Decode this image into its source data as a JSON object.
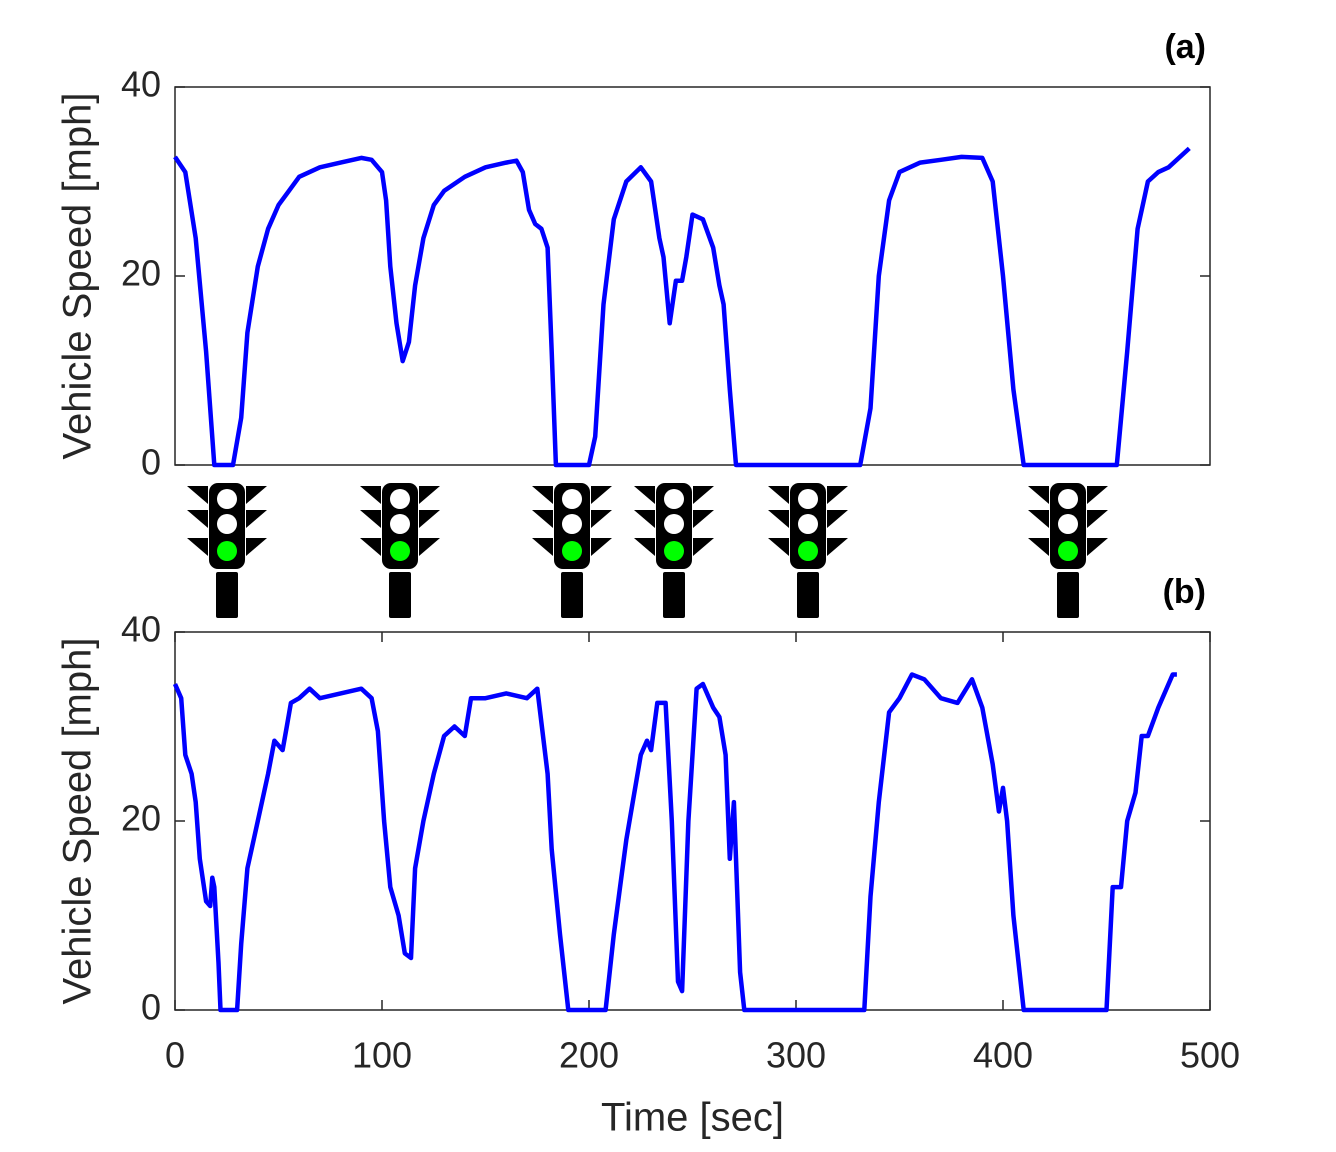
{
  "chart_data": [
    {
      "type": "line",
      "title": "(a)",
      "y_label": "Vehicle Speed [mph]",
      "color": "#0000ff",
      "xlim": [
        0,
        500
      ],
      "ylim": [
        0,
        40
      ],
      "yticks": [
        0,
        20,
        40
      ],
      "x": [
        0,
        5,
        10,
        15,
        19,
        28,
        32,
        35,
        40,
        45,
        50,
        55,
        60,
        70,
        80,
        90,
        95,
        100,
        102,
        104,
        107,
        110,
        113,
        116,
        120,
        125,
        130,
        140,
        150,
        160,
        165,
        168,
        171,
        174,
        177,
        180,
        182,
        184,
        200,
        203,
        207,
        212,
        218,
        225,
        230,
        234,
        236,
        239,
        242,
        245,
        247,
        250,
        255,
        260,
        263,
        265,
        268,
        271,
        331,
        336,
        340,
        345,
        350,
        360,
        370,
        380,
        390,
        395,
        400,
        405,
        410,
        455,
        460,
        465,
        470,
        475,
        480,
        490
      ],
      "values": [
        32.6,
        31,
        24,
        12,
        0,
        0,
        5,
        14,
        21,
        25,
        27.5,
        29,
        30.5,
        31.5,
        32,
        32.5,
        32.3,
        31,
        28,
        21,
        15,
        11,
        13,
        19,
        24,
        27.5,
        29,
        30.5,
        31.5,
        32,
        32.2,
        31,
        27,
        25.5,
        25,
        23,
        12,
        0,
        0,
        3,
        17,
        26,
        30,
        31.5,
        30,
        24,
        22,
        15,
        19.5,
        19.5,
        22,
        26.5,
        26,
        23,
        19,
        17,
        8,
        0,
        0,
        6,
        20,
        28,
        31,
        32,
        32.3,
        32.6,
        32.5,
        30,
        20,
        8,
        0,
        0,
        12,
        25,
        30,
        31,
        31.5,
        33.5
      ]
    },
    {
      "type": "line",
      "title": "(b)",
      "y_label": "Vehicle Speed [mph]",
      "x_label": "Time [sec]",
      "color": "#0000ff",
      "xlim": [
        0,
        500
      ],
      "ylim": [
        0,
        40
      ],
      "xticks": [
        0,
        100,
        200,
        300,
        400,
        500
      ],
      "yticks": [
        0,
        20,
        40
      ],
      "x": [
        0,
        3,
        5,
        8,
        10,
        12,
        15,
        17,
        18,
        19,
        21,
        22,
        30,
        32,
        35,
        40,
        45,
        48,
        52,
        54,
        56,
        60,
        65,
        70,
        80,
        90,
        95,
        98,
        101,
        104,
        108,
        111,
        114,
        116,
        120,
        125,
        130,
        135,
        140,
        143,
        150,
        160,
        170,
        175,
        180,
        182,
        186,
        190,
        208,
        212,
        218,
        225,
        228,
        230,
        233,
        237,
        240,
        243,
        245,
        248,
        252,
        255,
        260,
        263,
        266,
        268,
        270,
        271,
        273,
        275,
        333,
        336,
        340,
        345,
        350,
        356,
        362,
        370,
        378,
        385,
        390,
        395,
        398,
        400,
        402,
        405,
        410,
        450,
        453,
        457,
        460,
        464,
        467,
        470,
        475,
        482,
        484
      ],
      "values": [
        34.5,
        33,
        27,
        25,
        22,
        16,
        11.5,
        11,
        14,
        13,
        5,
        0,
        0,
        7,
        15,
        20,
        25,
        28.5,
        27.5,
        30,
        32.5,
        33,
        34,
        33,
        33.5,
        34,
        33,
        29.5,
        20,
        13,
        10,
        6,
        5.5,
        15,
        20,
        25,
        29,
        30,
        29,
        33,
        33,
        33.5,
        33,
        34,
        25,
        17,
        8,
        0,
        0,
        8,
        18,
        27,
        28.5,
        27.5,
        32.5,
        32.5,
        20,
        3,
        2,
        20,
        34,
        34.5,
        32,
        31,
        27,
        16,
        22,
        16,
        4,
        0,
        0,
        12,
        22,
        31.5,
        33,
        35.5,
        35,
        33,
        32.5,
        35,
        32,
        26,
        21,
        23.5,
        20,
        10,
        0,
        0,
        13,
        13,
        20,
        23,
        29,
        29,
        32,
        35.5,
        35.5
      ]
    }
  ]
}
